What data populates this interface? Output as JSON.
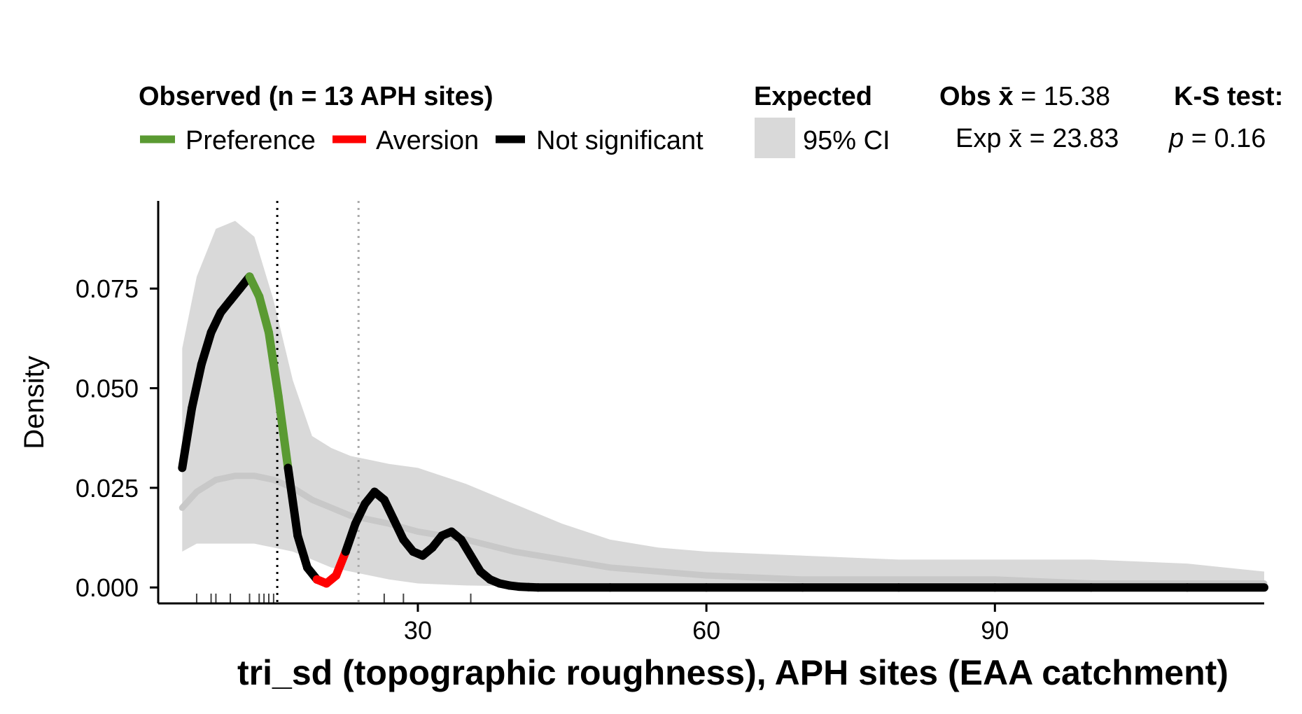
{
  "chart_data": {
    "type": "area",
    "xlabel": "tri_sd (topographic roughness), APH sites (EAA catchment)",
    "ylabel": "Density",
    "xlim": [
      3,
      118
    ],
    "ylim": [
      -0.004,
      0.097
    ],
    "x_ticks": [
      30,
      60,
      90
    ],
    "x_tick_labels": [
      "30",
      "60",
      "90"
    ],
    "y_ticks": [
      0.0,
      0.025,
      0.05,
      0.075
    ],
    "y_tick_labels": [
      "0.000",
      "0.025",
      "0.050",
      "0.075"
    ],
    "grid": false,
    "legend_position": "top",
    "legend": {
      "observed_title": "Observed (n = 13 APH sites)",
      "items": [
        {
          "label": "Preference",
          "color": "#5a9a32"
        },
        {
          "label": "Aversion",
          "color": "#ff0000"
        },
        {
          "label": "Not significant",
          "color": "#000000"
        }
      ],
      "expected_title": "Expected",
      "ci_label": "95% CI",
      "ci_color": "#d9d9d9"
    },
    "stats": {
      "obs_mean_label": "Obs x̄ = 15.38",
      "exp_mean_label": "Exp x̄ = 23.83",
      "ks_title": "K-S test:",
      "p_label": "p = 0.16"
    },
    "obs_mean": 15.38,
    "exp_mean": 23.83,
    "observed_series": {
      "x": [
        5.5,
        6.5,
        7.5,
        8.5,
        9.5,
        10.5,
        11.5,
        12.5,
        13.5,
        14.5,
        15.5,
        16.5,
        17.5,
        18.5,
        19.5,
        20.5,
        21.5,
        22.5,
        23.5,
        24.5,
        25.5,
        26.5,
        27.5,
        28.5,
        29.5,
        30.5,
        31.5,
        32.5,
        33.5,
        34.5,
        35.5,
        36.5,
        37.5,
        38.5,
        39.5,
        40.5,
        41.5,
        42.5,
        50,
        60,
        70,
        80,
        90,
        100,
        110,
        118
      ],
      "y": [
        0.03,
        0.045,
        0.056,
        0.064,
        0.069,
        0.072,
        0.075,
        0.078,
        0.073,
        0.064,
        0.048,
        0.03,
        0.013,
        0.005,
        0.002,
        0.001,
        0.003,
        0.009,
        0.016,
        0.021,
        0.024,
        0.022,
        0.017,
        0.012,
        0.009,
        0.008,
        0.01,
        0.013,
        0.014,
        0.012,
        0.008,
        0.004,
        0.002,
        0.001,
        0.0005,
        0.0002,
        0.0001,
        0.0,
        0.0,
        0.0,
        0.0,
        0.0,
        0.0,
        0.0,
        0.0,
        0.0
      ],
      "significance": [
        "ns",
        "ns",
        "ns",
        "ns",
        "ns",
        "ns",
        "ns",
        "pref",
        "pref",
        "pref",
        "pref",
        "ns",
        "ns",
        "ns",
        "av",
        "av",
        "av",
        "ns",
        "ns",
        "ns",
        "ns",
        "ns",
        "ns",
        "ns",
        "ns",
        "ns",
        "ns",
        "ns",
        "ns",
        "ns",
        "ns",
        "ns",
        "ns",
        "ns",
        "ns",
        "ns",
        "ns",
        "ns",
        "ns",
        "ns",
        "ns",
        "ns",
        "ns",
        "ns",
        "ns",
        "ns"
      ]
    },
    "expected_series": {
      "x": [
        5.5,
        7,
        9,
        11,
        13,
        15,
        17,
        19,
        21,
        23,
        25,
        27,
        30,
        35,
        40,
        45,
        50,
        55,
        60,
        70,
        80,
        90,
        100,
        110,
        118
      ],
      "mean": [
        0.02,
        0.024,
        0.027,
        0.028,
        0.028,
        0.027,
        0.025,
        0.022,
        0.02,
        0.018,
        0.017,
        0.016,
        0.014,
        0.012,
        0.009,
        0.007,
        0.005,
        0.004,
        0.003,
        0.002,
        0.002,
        0.002,
        0.001,
        0.001,
        0.001
      ],
      "lower": [
        0.009,
        0.011,
        0.011,
        0.011,
        0.011,
        0.01,
        0.009,
        0.007,
        0.005,
        0.004,
        0.003,
        0.002,
        0.001,
        0.0005,
        0.0003,
        0.0002,
        0.0001,
        0.0001,
        0.0001,
        0.0,
        0.0,
        0.0,
        0.0,
        0.0,
        0.0
      ],
      "upper": [
        0.06,
        0.078,
        0.09,
        0.092,
        0.088,
        0.072,
        0.052,
        0.038,
        0.035,
        0.033,
        0.032,
        0.031,
        0.03,
        0.026,
        0.021,
        0.016,
        0.012,
        0.01,
        0.009,
        0.008,
        0.007,
        0.007,
        0.007,
        0.006,
        0.004
      ]
    },
    "rug": {
      "observed": [
        7,
        8.5,
        9,
        10.5,
        12.5,
        13.5,
        14,
        14.5,
        15
      ],
      "expected": [
        26.5,
        28.5,
        35.5
      ]
    }
  }
}
